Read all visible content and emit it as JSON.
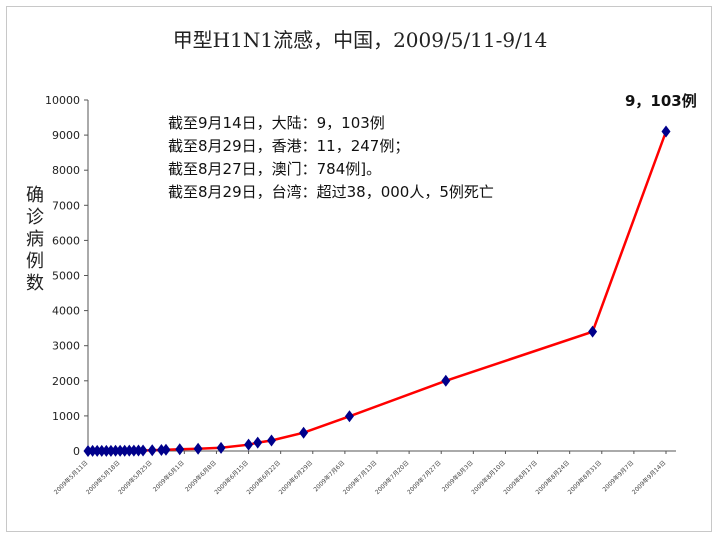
{
  "chart_data": {
    "type": "line",
    "title": "甲型H1N1流感，中国，2009/5/11-9/14",
    "ylabel": "确诊病例数",
    "xlabel": "",
    "ylim": [
      0,
      10000
    ],
    "yticks": [
      0,
      1000,
      2000,
      3000,
      4000,
      5000,
      6000,
      7000,
      8000,
      9000,
      10000
    ],
    "xtick_labels": [
      "2009年5月11日",
      "2009年5月18日",
      "2009年5月25日",
      "2009年6月1日",
      "2009年6月8日",
      "2009年6月15日",
      "2009年6月22日",
      "2009年6月29日",
      "2009年7月6日",
      "2009年7月13日",
      "2009年7月20日",
      "2009年7月27日",
      "2009年8月3日",
      "2009年8月10日",
      "2009年8月17日",
      "2009年8月24日",
      "2009年8月31日",
      "2009年9月7日",
      "2009年9月14日"
    ],
    "x_start": "2009-05-11",
    "x_end": "2009-09-14",
    "series": [
      {
        "name": "",
        "color": "#ff0000",
        "marker_color": "#00008b",
        "points": [
          {
            "date": "2009-05-11",
            "value": 1
          },
          {
            "date": "2009-05-12",
            "value": 2
          },
          {
            "date": "2009-05-13",
            "value": 3
          },
          {
            "date": "2009-05-14",
            "value": 4
          },
          {
            "date": "2009-05-15",
            "value": 4
          },
          {
            "date": "2009-05-16",
            "value": 5
          },
          {
            "date": "2009-05-17",
            "value": 6
          },
          {
            "date": "2009-05-18",
            "value": 7
          },
          {
            "date": "2009-05-19",
            "value": 8
          },
          {
            "date": "2009-05-20",
            "value": 10
          },
          {
            "date": "2009-05-21",
            "value": 12
          },
          {
            "date": "2009-05-22",
            "value": 14
          },
          {
            "date": "2009-05-23",
            "value": 15
          },
          {
            "date": "2009-05-25",
            "value": 20
          },
          {
            "date": "2009-05-27",
            "value": 30
          },
          {
            "date": "2009-05-28",
            "value": 35
          },
          {
            "date": "2009-05-31",
            "value": 50
          },
          {
            "date": "2009-06-04",
            "value": 65
          },
          {
            "date": "2009-06-09",
            "value": 90
          },
          {
            "date": "2009-06-15",
            "value": 180
          },
          {
            "date": "2009-06-17",
            "value": 240
          },
          {
            "date": "2009-06-20",
            "value": 300
          },
          {
            "date": "2009-06-27",
            "value": 520
          },
          {
            "date": "2009-07-07",
            "value": 990
          },
          {
            "date": "2009-07-28",
            "value": 2000
          },
          {
            "date": "2009-08-29",
            "value": 3400
          },
          {
            "date": "2009-09-14",
            "value": 9103
          }
        ]
      }
    ],
    "annotations": [
      "截至9月14日，大陆：9，103例",
      "截至8月29日，香港：11，247例；",
      "截至8月27日，澳门：784例]。",
      "截至8月29日，台湾：超过38，000人，5例死亡"
    ],
    "end_label": "9，103例",
    "grid": false,
    "legend": "none"
  }
}
